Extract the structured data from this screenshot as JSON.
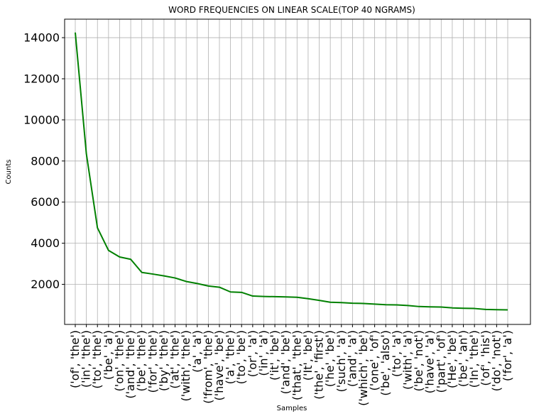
{
  "chart_data": {
    "type": "line",
    "title": "WORD FREQUENCIES ON LINEAR SCALE(TOP 40 NGRAMS)",
    "xlabel": "Samples",
    "ylabel": "Counts",
    "ylim": [
      50,
      14900
    ],
    "yticks": [
      2000,
      4000,
      6000,
      8000,
      10000,
      12000,
      14000
    ],
    "grid": true,
    "line_color": "#008000",
    "categories": [
      "('of', 'the')",
      "('in', 'the')",
      "('to', 'the')",
      "('be', 'a')",
      "('on', 'the')",
      "('and', 'the')",
      "('be', 'the')",
      "('for', 'the')",
      "('by', 'the')",
      "('at', 'the')",
      "('with', 'the')",
      "('a', 'a')",
      "('from', 'the')",
      "('have', 'be')",
      "('a', 'the')",
      "('to', 'be')",
      "('or', 'a')",
      "('in', 'a')",
      "('it', 'be')",
      "('and', 'be')",
      "('that', 'the')",
      "('It', 'be')",
      "('the', 'first')",
      "('he', 'be')",
      "('such', 'a')",
      "('and', 'a')",
      "('which', 'be')",
      "('one', 'of')",
      "('be', 'also')",
      "('to', 'a')",
      "('with', 'a')",
      "('be', 'not')",
      "('have', 'a')",
      "('part', 'of')",
      "('He', 'be')",
      "('be', 'an')",
      "('In', 'the')",
      "('of', 'his')",
      "('do', 'not')",
      "('for', 'a')"
    ],
    "values": [
      14250,
      8350,
      4750,
      3650,
      3330,
      3220,
      2580,
      2500,
      2410,
      2310,
      2140,
      2040,
      1920,
      1860,
      1630,
      1610,
      1430,
      1410,
      1400,
      1390,
      1370,
      1300,
      1220,
      1130,
      1110,
      1080,
      1070,
      1040,
      1010,
      1000,
      970,
      920,
      905,
      895,
      855,
      835,
      825,
      780,
      765,
      760
    ]
  }
}
